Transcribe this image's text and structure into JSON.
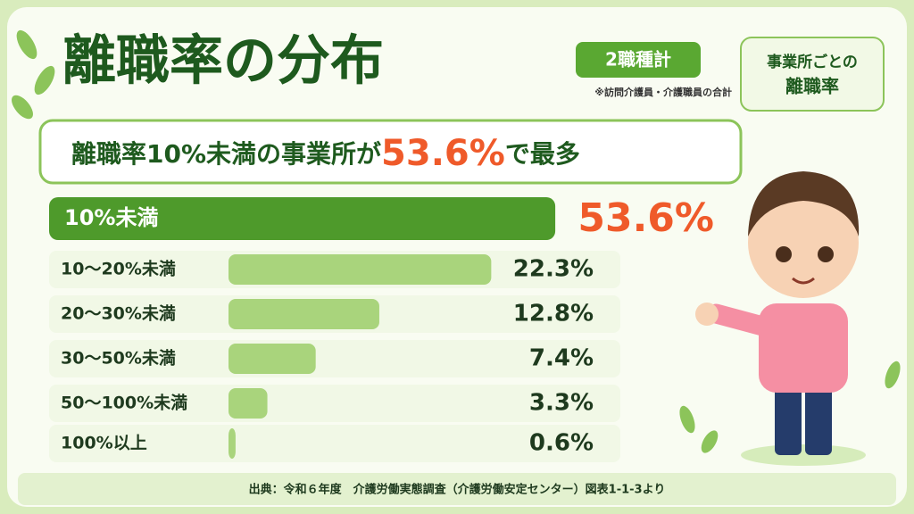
{
  "title": "離職率の分布",
  "badge": "2職種計",
  "note": "※訪問介護員・介護職員の合計",
  "side_box": {
    "line1": "事業所ごとの",
    "line2": "離職率"
  },
  "headline": {
    "before": "離職率10%未満の事業所が",
    "highlight": "53.6%",
    "after": "で最多"
  },
  "chart_data": {
    "type": "bar",
    "orientation": "horizontal",
    "categories": [
      "10%未満",
      "10～20%未満",
      "20～30%未満",
      "30～50%未満",
      "50～100%未満",
      "100%以上"
    ],
    "values": [
      53.6,
      22.3,
      12.8,
      7.4,
      3.3,
      0.6
    ],
    "value_labels": [
      "53.6%",
      "22.3%",
      "12.8%",
      "7.4%",
      "3.3%",
      "0.6%"
    ],
    "color": "#a9d47c",
    "highlight_color": "#4e9a2b"
  },
  "source": "出典：令和６年度　介護労働実態調査（介護労働安定センター）図表1-1-3より"
}
